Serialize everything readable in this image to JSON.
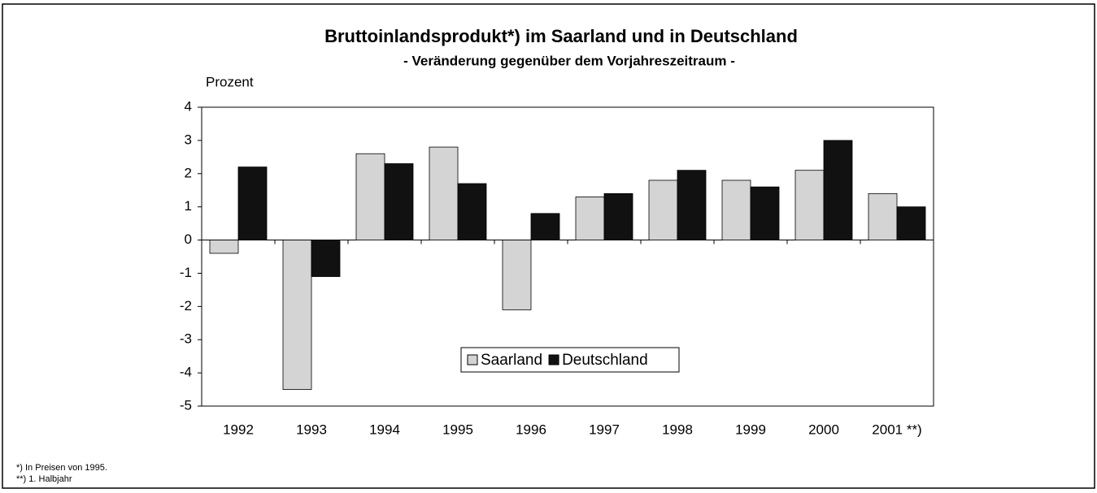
{
  "chart_data": {
    "type": "bar",
    "title": "Bruttoinlandsprodukt*) im Saarland und in Deutschland",
    "subtitle": "- Veränderung gegenüber dem Vorjahreszeitraum -",
    "y_label": "Prozent",
    "categories": [
      "1992",
      "1993",
      "1994",
      "1995",
      "1996",
      "1997",
      "1998",
      "1999",
      "2000",
      "2001 **)"
    ],
    "series": [
      {
        "name": "Saarland",
        "color": "#d4d4d4",
        "values": [
          -0.4,
          -4.5,
          2.6,
          2.8,
          -2.1,
          1.3,
          1.8,
          1.8,
          2.1,
          1.4
        ]
      },
      {
        "name": "Deutschland",
        "color": "#111111",
        "values": [
          2.2,
          -1.1,
          2.3,
          1.7,
          0.8,
          1.4,
          2.1,
          1.6,
          3.0,
          1.0
        ]
      }
    ],
    "ylim": [
      -5,
      4
    ],
    "yticks": [
      -5,
      -4,
      -3,
      -2,
      -1,
      0,
      1,
      2,
      3,
      4
    ],
    "grid": false,
    "legend": "bottom",
    "footnotes": [
      "*)  In Preisen von 1995.",
      "**) 1. Halbjahr"
    ]
  }
}
